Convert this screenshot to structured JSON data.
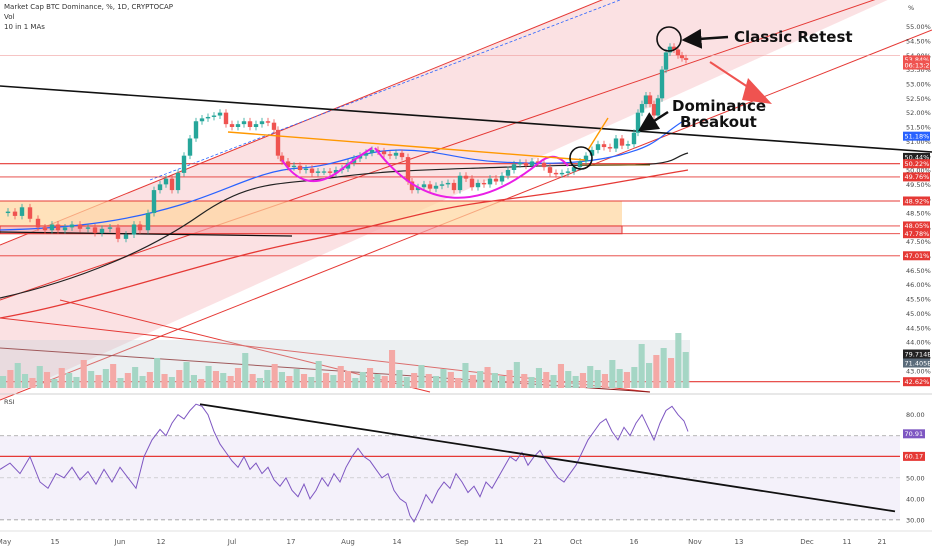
{
  "header": {
    "title": "Market Cap BTC Dominance, %, 1D, CRYPTOCAP",
    "vol_label": "Vol",
    "ma_label": "10 in 1 MAs"
  },
  "annotations": {
    "classic_retest": "Classic Retest",
    "dominance": "Dominance",
    "breakout": "Breakout"
  },
  "colors": {
    "up": "#26a69a",
    "down": "#ef5350",
    "channel": "#f8c9cc",
    "rsi": "#7e57c2",
    "resistance": "#e53935",
    "neckline": "#ff9800",
    "cup": "#e91ee6",
    "ma_blue": "#2962ff",
    "ma_black": "#222222",
    "ma_red": "#e53935"
  },
  "chart_data": [
    {
      "type": "candlestick",
      "title": "Market Cap BTC Dominance, %, 1D, CRYPTOCAP",
      "unit": "%",
      "ylim": [
        42.4,
        55.3
      ],
      "price_ticks": [
        "55.00%",
        "54.50%",
        "54.00%",
        "53.50%",
        "53.00%",
        "52.50%",
        "52.00%",
        "51.50%",
        "51.00%",
        "50.50%",
        "50.00%",
        "49.50%",
        "49.00%",
        "48.50%",
        "48.00%",
        "47.50%",
        "47.00%",
        "46.50%",
        "46.00%",
        "45.50%",
        "45.00%",
        "44.50%",
        "44.00%",
        "43.50%",
        "43.00%"
      ],
      "x_ticks": [
        "May",
        "15",
        "Jun",
        "12",
        "Jul",
        "17",
        "Aug",
        "14",
        "Sep",
        "11",
        "21",
        "Oct",
        "16",
        "Nov",
        "13",
        "Dec",
        "11",
        "21"
      ],
      "price_badges": [
        {
          "text": "53.84%",
          "color": "#ef5350"
        },
        {
          "text": "06:13:27",
          "color": "#ef5350"
        },
        {
          "text": "51.18%",
          "color": "#2962ff"
        },
        {
          "text": "50.44%",
          "color": "#222222"
        },
        {
          "text": "50.22%",
          "color": "#e53935"
        },
        {
          "text": "49.76%",
          "color": "#e53935"
        },
        {
          "text": "48.92%",
          "color": "#e53935"
        },
        {
          "text": "48.05%",
          "color": "#e53935"
        },
        {
          "text": "47.78%",
          "color": "#e53935"
        },
        {
          "text": "47.01%",
          "color": "#e53935"
        },
        {
          "text": "42.62%",
          "color": "#e53935"
        }
      ],
      "volume_badges": [
        {
          "text": "79.714B",
          "color": "#222222"
        },
        {
          "text": "71.405B",
          "color": "#5a6b7a"
        }
      ],
      "key_levels": [
        50.22,
        49.76,
        48.92,
        48.05,
        47.78,
        47.01,
        42.62
      ],
      "annotations": [
        "Classic Retest",
        "Dominance Breakout"
      ],
      "moving_averages": [
        "blue",
        "black",
        "red"
      ],
      "close_path": [
        [
          0,
          48.5
        ],
        [
          8,
          48.55
        ],
        [
          15,
          48.4
        ],
        [
          22,
          48.7
        ],
        [
          30,
          48.3
        ],
        [
          38,
          48.0
        ],
        [
          45,
          47.9
        ],
        [
          52,
          48.1
        ],
        [
          58,
          47.9
        ],
        [
          65,
          48.0
        ],
        [
          72,
          48.1
        ],
        [
          80,
          47.95
        ],
        [
          88,
          48.0
        ],
        [
          95,
          47.8
        ],
        [
          102,
          47.95
        ],
        [
          110,
          48.0
        ],
        [
          118,
          47.6
        ],
        [
          126,
          47.75
        ],
        [
          134,
          48.1
        ],
        [
          140,
          47.9
        ],
        [
          148,
          48.5
        ],
        [
          154,
          49.3
        ],
        [
          160,
          49.5
        ],
        [
          166,
          49.7
        ],
        [
          172,
          49.3
        ],
        [
          178,
          49.9
        ],
        [
          184,
          50.5
        ],
        [
          190,
          51.1
        ],
        [
          196,
          51.7
        ],
        [
          202,
          51.8
        ],
        [
          208,
          51.85
        ],
        [
          214,
          51.9
        ],
        [
          220,
          52.0
        ],
        [
          226,
          51.6
        ],
        [
          232,
          51.5
        ],
        [
          238,
          51.6
        ],
        [
          244,
          51.7
        ],
        [
          250,
          51.5
        ],
        [
          256,
          51.6
        ],
        [
          262,
          51.7
        ],
        [
          268,
          51.65
        ],
        [
          274,
          51.4
        ],
        [
          278,
          50.5
        ],
        [
          282,
          50.3
        ],
        [
          288,
          50.1
        ],
        [
          294,
          50.15
        ],
        [
          300,
          50.0
        ],
        [
          306,
          50.05
        ],
        [
          312,
          49.9
        ],
        [
          318,
          49.95
        ],
        [
          324,
          49.95
        ],
        [
          330,
          49.9
        ],
        [
          336,
          50.0
        ],
        [
          342,
          50.05
        ],
        [
          348,
          50.25
        ],
        [
          354,
          50.4
        ],
        [
          360,
          50.5
        ],
        [
          366,
          50.6
        ],
        [
          372,
          50.7
        ],
        [
          378,
          50.65
        ],
        [
          384,
          50.55
        ],
        [
          390,
          50.5
        ],
        [
          396,
          50.6
        ],
        [
          402,
          50.45
        ],
        [
          408,
          49.6
        ],
        [
          412,
          49.3
        ],
        [
          418,
          49.4
        ],
        [
          424,
          49.5
        ],
        [
          430,
          49.35
        ],
        [
          436,
          49.45
        ],
        [
          442,
          49.5
        ],
        [
          448,
          49.55
        ],
        [
          454,
          49.3
        ],
        [
          460,
          49.8
        ],
        [
          466,
          49.7
        ],
        [
          472,
          49.4
        ],
        [
          478,
          49.55
        ],
        [
          484,
          49.5
        ],
        [
          490,
          49.7
        ],
        [
          496,
          49.6
        ],
        [
          502,
          49.8
        ],
        [
          508,
          50.0
        ],
        [
          514,
          50.2
        ],
        [
          520,
          50.25
        ],
        [
          526,
          50.15
        ],
        [
          532,
          50.3
        ],
        [
          538,
          50.25
        ],
        [
          544,
          50.1
        ],
        [
          550,
          49.9
        ],
        [
          556,
          49.85
        ],
        [
          562,
          49.9
        ],
        [
          568,
          49.95
        ],
        [
          574,
          50.1
        ],
        [
          580,
          50.3
        ],
        [
          586,
          50.5
        ],
        [
          592,
          50.7
        ],
        [
          598,
          50.9
        ],
        [
          604,
          50.8
        ],
        [
          610,
          50.75
        ],
        [
          616,
          51.1
        ],
        [
          622,
          50.85
        ],
        [
          628,
          50.9
        ],
        [
          634,
          51.3
        ],
        [
          638,
          52.0
        ],
        [
          642,
          52.3
        ],
        [
          646,
          52.6
        ],
        [
          650,
          52.3
        ],
        [
          654,
          51.9
        ],
        [
          658,
          52.5
        ],
        [
          662,
          53.5
        ],
        [
          666,
          54.1
        ],
        [
          670,
          54.3
        ],
        [
          674,
          54.2
        ],
        [
          678,
          54.0
        ],
        [
          682,
          53.9
        ],
        [
          686,
          53.84
        ]
      ],
      "volume_heights": [
        12,
        18,
        25,
        14,
        10,
        22,
        16,
        9,
        20,
        15,
        11,
        28,
        17,
        13,
        19,
        24,
        10,
        15,
        21,
        12,
        16,
        30,
        14,
        11,
        18,
        26,
        13,
        9,
        22,
        17,
        15,
        12,
        20,
        35,
        14,
        10,
        18,
        24,
        16,
        12,
        19,
        14,
        11,
        27,
        15,
        13,
        22,
        17,
        10,
        16,
        20,
        14,
        12,
        38,
        18,
        11,
        15,
        23,
        14,
        12,
        19,
        16,
        10,
        25,
        13,
        17,
        21,
        15,
        12,
        18,
        26,
        14,
        11,
        20,
        16,
        13,
        24,
        17,
        12,
        15,
        22,
        18,
        14,
        28,
        19,
        16,
        21,
        44,
        25,
        33,
        40,
        30,
        55,
        36
      ],
      "volume_colors": [
        "g",
        "r",
        "g",
        "g",
        "r",
        "g",
        "r",
        "g",
        "r",
        "g",
        "g",
        "r",
        "g",
        "r",
        "g",
        "r",
        "g",
        "r",
        "g",
        "g",
        "r",
        "g",
        "r",
        "g",
        "r",
        "g",
        "g",
        "r",
        "g",
        "r",
        "g",
        "r",
        "r",
        "g",
        "r",
        "g",
        "g",
        "r",
        "g",
        "r",
        "g",
        "r",
        "g",
        "g",
        "r",
        "g",
        "r",
        "r",
        "g",
        "g",
        "r",
        "g",
        "r",
        "r",
        "g",
        "g",
        "r",
        "g",
        "r",
        "g",
        "g",
        "r",
        "r",
        "g",
        "r",
        "g",
        "r",
        "g",
        "g",
        "r",
        "g",
        "r",
        "g",
        "g",
        "r",
        "g",
        "r",
        "g",
        "g",
        "r",
        "g",
        "g",
        "r",
        "g",
        "g",
        "r",
        "g",
        "g",
        "g",
        "r",
        "g",
        "r",
        "g",
        "g"
      ]
    },
    {
      "type": "line",
      "title": "RSI",
      "ylim": [
        28,
        87
      ],
      "y_ticks": [
        "80.00",
        "70.00",
        "60.00",
        "50.00",
        "40.00",
        "30.00"
      ],
      "badges": [
        {
          "text": "70.91",
          "color": "#7e57c2"
        },
        {
          "text": "60.17",
          "color": "#e53935"
        }
      ],
      "upper_band": 70,
      "lower_band": 30,
      "series": [
        {
          "points": [
            [
              0,
              54
            ],
            [
              10,
              57
            ],
            [
              20,
              52
            ],
            [
              30,
              60
            ],
            [
              40,
              48
            ],
            [
              48,
              45
            ],
            [
              56,
              52
            ],
            [
              64,
              50
            ],
            [
              72,
              55
            ],
            [
              80,
              49
            ],
            [
              88,
              53
            ],
            [
              96,
              47
            ],
            [
              104,
              54
            ],
            [
              112,
              48
            ],
            [
              120,
              55
            ],
            [
              128,
              50
            ],
            [
              136,
              45
            ],
            [
              144,
              60
            ],
            [
              152,
              68
            ],
            [
              160,
              73
            ],
            [
              166,
              70
            ],
            [
              172,
              76
            ],
            [
              178,
              80
            ],
            [
              184,
              78
            ],
            [
              190,
              82
            ],
            [
              196,
              85
            ],
            [
              202,
              84
            ],
            [
              208,
              80
            ],
            [
              214,
              72
            ],
            [
              220,
              66
            ],
            [
              226,
              62
            ],
            [
              232,
              58
            ],
            [
              238,
              55
            ],
            [
              244,
              60
            ],
            [
              250,
              54
            ],
            [
              256,
              57
            ],
            [
              262,
              52
            ],
            [
              268,
              55
            ],
            [
              274,
              49
            ],
            [
              280,
              46
            ],
            [
              286,
              50
            ],
            [
              292,
              44
            ],
            [
              298,
              41
            ],
            [
              304,
              47
            ],
            [
              310,
              40
            ],
            [
              316,
              44
            ],
            [
              322,
              50
            ],
            [
              328,
              46
            ],
            [
              334,
              52
            ],
            [
              340,
              48
            ],
            [
              346,
              55
            ],
            [
              352,
              60
            ],
            [
              358,
              64
            ],
            [
              364,
              60
            ],
            [
              370,
              58
            ],
            [
              376,
              54
            ],
            [
              382,
              50
            ],
            [
              388,
              52
            ],
            [
              394,
              44
            ],
            [
              400,
              40
            ],
            [
              406,
              38
            ],
            [
              410,
              32
            ],
            [
              414,
              29
            ],
            [
              420,
              35
            ],
            [
              426,
              42
            ],
            [
              432,
              38
            ],
            [
              438,
              44
            ],
            [
              444,
              48
            ],
            [
              450,
              45
            ],
            [
              456,
              52
            ],
            [
              462,
              48
            ],
            [
              468,
              43
            ],
            [
              474,
              46
            ],
            [
              480,
              41
            ],
            [
              486,
              48
            ],
            [
              492,
              45
            ],
            [
              498,
              50
            ],
            [
              504,
              55
            ],
            [
              510,
              60
            ],
            [
              516,
              58
            ],
            [
              522,
              62
            ],
            [
              528,
              56
            ],
            [
              534,
              60
            ],
            [
              540,
              63
            ],
            [
              546,
              58
            ],
            [
              552,
              54
            ],
            [
              558,
              50
            ],
            [
              564,
              48
            ],
            [
              570,
              52
            ],
            [
              576,
              56
            ],
            [
              582,
              62
            ],
            [
              588,
              68
            ],
            [
              594,
              72
            ],
            [
              600,
              76
            ],
            [
              606,
              78
            ],
            [
              612,
              72
            ],
            [
              618,
              68
            ],
            [
              624,
              74
            ],
            [
              630,
              70
            ],
            [
              636,
              76
            ],
            [
              642,
              80
            ],
            [
              648,
              74
            ],
            [
              654,
              68
            ],
            [
              660,
              76
            ],
            [
              666,
              82
            ],
            [
              672,
              84
            ],
            [
              678,
              80
            ],
            [
              684,
              77
            ],
            [
              688,
              72
            ]
          ]
        }
      ]
    }
  ]
}
